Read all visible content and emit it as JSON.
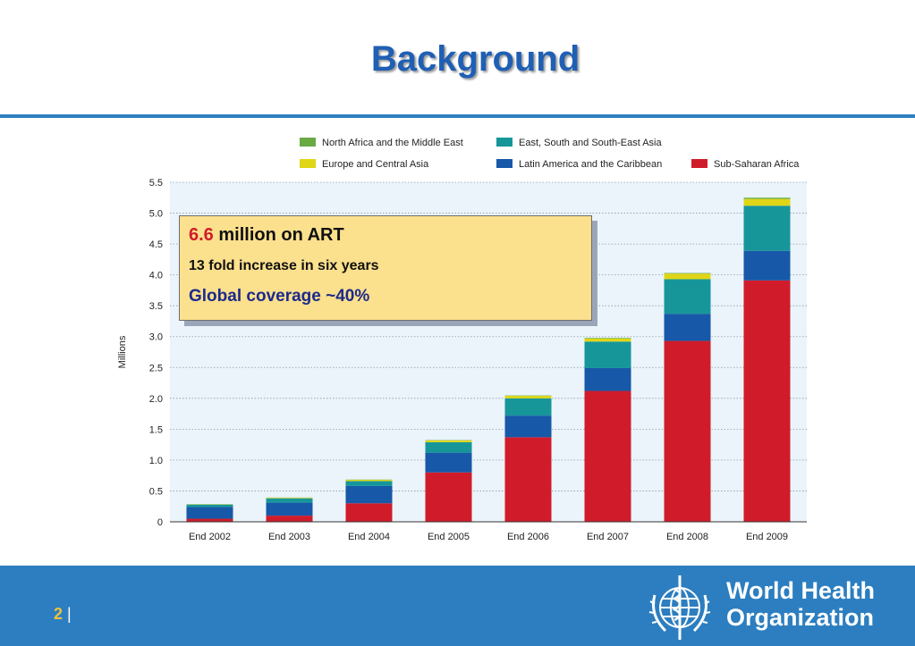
{
  "slide": {
    "title": "Background",
    "page_number": "2",
    "page_separator": "|"
  },
  "callout": {
    "line1_highlight": "6.6",
    "line1_rest": " million on ART",
    "line2": "13 fold increase in six years",
    "line3": "Global coverage ~40%"
  },
  "logo": {
    "line1": "World Health",
    "line2": "Organization"
  },
  "chart_data": {
    "type": "bar",
    "stacked": true,
    "ylabel": "Millions",
    "ylim": [
      0,
      5.5
    ],
    "yticks": [
      "0",
      "0.5",
      "1.0",
      "1.5",
      "2.0",
      "2.5",
      "3.0",
      "3.5",
      "4.0",
      "4.5",
      "5.0",
      "5.5"
    ],
    "grid": true,
    "legend_position": "top",
    "categories": [
      "End 2002",
      "End 2003",
      "End 2004",
      "End 2005",
      "End 2006",
      "End 2007",
      "End 2008",
      "End 2009"
    ],
    "series": [
      {
        "name": "Sub-Saharan Africa",
        "color": "#d01c2a",
        "values": [
          0.05,
          0.1,
          0.3,
          0.8,
          1.37,
          2.12,
          2.93,
          3.91
        ]
      },
      {
        "name": "Latin America and the Caribbean",
        "color": "#1758a8",
        "values": [
          0.19,
          0.21,
          0.28,
          0.32,
          0.35,
          0.37,
          0.44,
          0.48
        ]
      },
      {
        "name": "East, South and South-East Asia",
        "color": "#17969a",
        "values": [
          0.04,
          0.07,
          0.08,
          0.17,
          0.28,
          0.43,
          0.56,
          0.73
        ]
      },
      {
        "name": "Europe and Central Asia",
        "color": "#e0d616",
        "values": [
          0.005,
          0.01,
          0.02,
          0.03,
          0.04,
          0.05,
          0.09,
          0.11
        ]
      },
      {
        "name": "North Africa and the Middle East",
        "color": "#6aaa45",
        "values": [
          0.002,
          0.003,
          0.004,
          0.005,
          0.006,
          0.01,
          0.01,
          0.02
        ]
      }
    ],
    "legend_order": [
      "North Africa and the Middle East",
      "East, South and South-East Asia",
      "Europe and Central Asia",
      "Latin America and the Caribbean",
      "Sub-Saharan Africa"
    ]
  }
}
